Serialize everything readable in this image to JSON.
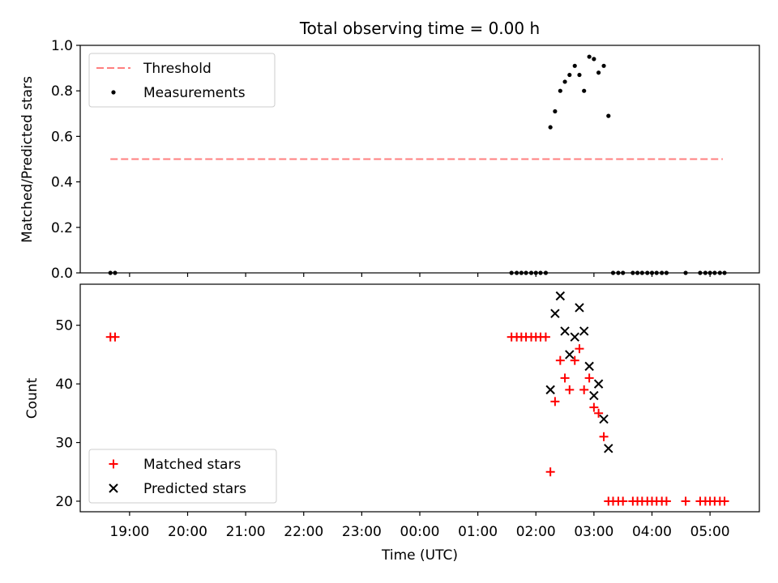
{
  "chart_data": [
    {
      "type": "scatter",
      "title": "Total observing time = 0.00 h",
      "xlabel": "",
      "ylabel": "Matched/Predicted stars",
      "ylim": [
        0,
        1
      ],
      "xlim": [
        18.15,
        5.85
      ],
      "yticks": [
        0,
        0.2,
        0.4,
        0.6,
        0.8,
        1.0
      ],
      "ytick_labels": [
        "0.0",
        "0.2",
        "0.4",
        "0.6",
        "0.8",
        "1.0"
      ],
      "legend": {
        "position": "upper-left",
        "entries": [
          "Threshold",
          "Measurements"
        ]
      },
      "threshold": {
        "name": "Threshold",
        "y": 0.5,
        "x_start": 18.67,
        "x_end": 5.22,
        "color": "#ff7f7f",
        "style": "dashed"
      },
      "series": [
        {
          "name": "Measurements",
          "color": "#000000",
          "marker": "dot",
          "x": [
            18.67,
            18.75,
            1.58,
            1.67,
            1.75,
            1.83,
            1.92,
            2.0,
            2.08,
            2.17,
            2.25,
            2.33,
            2.42,
            2.5,
            2.58,
            2.67,
            2.75,
            2.83,
            2.92,
            3.0,
            3.08,
            3.17,
            3.25,
            3.33,
            3.42,
            3.5,
            3.67,
            3.75,
            3.83,
            3.92,
            4.0,
            4.08,
            4.17,
            4.25,
            4.58,
            4.83,
            4.92,
            5.0,
            5.08,
            5.17,
            5.25
          ],
          "y": [
            0,
            0,
            0,
            0,
            0,
            0,
            0,
            0,
            0,
            0,
            0.64,
            0.71,
            0.8,
            0.84,
            0.87,
            0.91,
            0.87,
            0.8,
            0.95,
            0.94,
            0.88,
            0.91,
            0.69,
            0,
            0,
            0,
            0,
            0,
            0,
            0,
            0,
            0,
            0,
            0,
            0,
            0,
            0,
            0,
            0,
            0,
            0
          ]
        }
      ]
    },
    {
      "type": "scatter",
      "title": "",
      "xlabel": "Time (UTC)",
      "ylabel": "Count",
      "ylim": [
        18.2,
        57.0
      ],
      "xlim": [
        18.15,
        5.85
      ],
      "yticks": [
        20,
        30,
        40,
        50
      ],
      "ytick_labels": [
        "20",
        "30",
        "40",
        "50"
      ],
      "xtick_labels": [
        "19:00",
        "20:00",
        "21:00",
        "22:00",
        "23:00",
        "00:00",
        "01:00",
        "02:00",
        "03:00",
        "04:00",
        "05:00"
      ],
      "legend": {
        "position": "lower-left",
        "entries": [
          "Matched stars",
          "Predicted stars"
        ]
      },
      "series": [
        {
          "name": "Matched stars",
          "color": "#ff0000",
          "marker": "plus",
          "x": [
            18.67,
            18.75,
            1.58,
            1.67,
            1.75,
            1.83,
            1.92,
            2.0,
            2.08,
            2.17,
            2.25,
            2.33,
            2.42,
            2.5,
            2.58,
            2.67,
            2.75,
            2.83,
            2.92,
            3.0,
            3.08,
            3.17,
            3.25,
            3.33,
            3.42,
            3.5,
            3.67,
            3.75,
            3.83,
            3.92,
            4.0,
            4.08,
            4.17,
            4.25,
            4.58,
            4.83,
            4.92,
            5.0,
            5.08,
            5.17,
            5.25
          ],
          "y": [
            48,
            48,
            48,
            48,
            48,
            48,
            48,
            48,
            48,
            48,
            25,
            37,
            44,
            41,
            39,
            44,
            46,
            39,
            41,
            36,
            35,
            31,
            20,
            20,
            20,
            20,
            20,
            20,
            20,
            20,
            20,
            20,
            20,
            20,
            20,
            20,
            20,
            20,
            20,
            20,
            20
          ]
        },
        {
          "name": "Predicted stars",
          "color": "#000000",
          "marker": "x",
          "x": [
            2.25,
            2.33,
            2.42,
            2.5,
            2.58,
            2.67,
            2.75,
            2.83,
            2.92,
            3.0,
            3.08,
            3.17,
            3.25
          ],
          "y": [
            39,
            52,
            55,
            49,
            45,
            48,
            53,
            49,
            43,
            38,
            40,
            34,
            29
          ]
        }
      ]
    }
  ]
}
